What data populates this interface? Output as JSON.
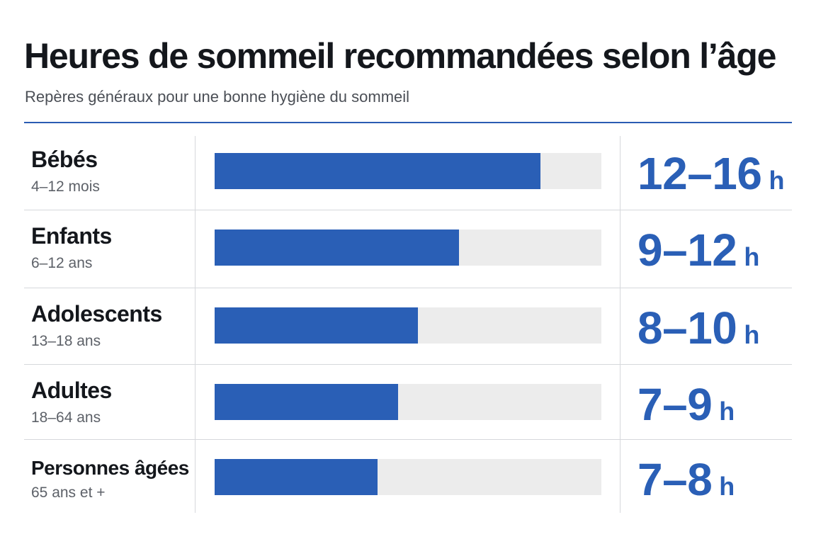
{
  "title": "Heures de sommeil recommandées selon l’âge",
  "subtitle": "Repères généraux pour une bonne hygiène du sommeil",
  "colors": {
    "accent": "#2a5fb6",
    "track": "#ececec",
    "text": "#14171c",
    "muted": "#5d6168",
    "grid": "#d6d8dc"
  },
  "chart_data": {
    "type": "bar",
    "orientation": "horizontal",
    "title": "Heures de sommeil recommandées selon l’âge",
    "subtitle": "Repères généraux pour une bonne hygiène du sommeil",
    "scale_max_hours": 19,
    "categories": [
      "Bébés",
      "Enfants",
      "Adolescents",
      "Adultes",
      "Personnes âgées"
    ],
    "rows": [
      {
        "group": "Bébés",
        "age_range": "4–12 mois",
        "min": 12,
        "max": 16,
        "hours_label": "12–16",
        "unit": "h"
      },
      {
        "group": "Enfants",
        "age_range": "6–12 ans",
        "min": 9,
        "max": 12,
        "hours_label": "9–12",
        "unit": "h"
      },
      {
        "group": "Adolescents",
        "age_range": "13–18 ans",
        "min": 8,
        "max": 10,
        "hours_label": "8–10",
        "unit": "h"
      },
      {
        "group": "Adultes",
        "age_range": "18–64 ans",
        "min": 7,
        "max": 9,
        "hours_label": "7–9",
        "unit": "h"
      },
      {
        "group": "Personnes âgées",
        "age_range": "65 ans et +",
        "min": 7,
        "max": 8,
        "hours_label": "7–8",
        "unit": "h"
      }
    ]
  }
}
